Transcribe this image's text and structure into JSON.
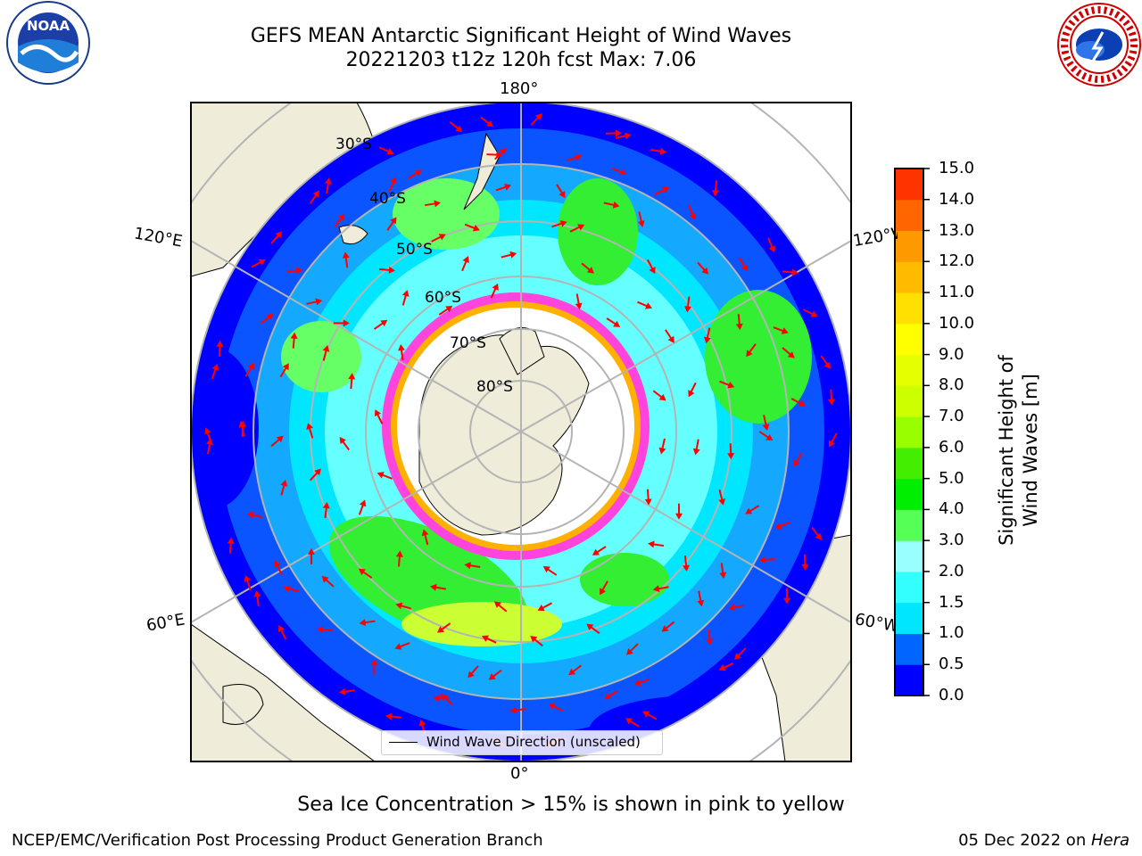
{
  "title": {
    "line1": "GEFS MEAN Antarctic Significant Height of Wind Waves",
    "line2": "20221203 t12z 120h fcst   Max: 7.06"
  },
  "logos": {
    "left": {
      "icon": "noaa-logo-icon",
      "text": "NOAA",
      "ring_text": "NATIONAL OCEANIC AND ATMOSPHERIC ADMINISTRATION · U.S. DEPARTMENT OF COMMERCE"
    },
    "right": {
      "icon": "nws-logo-icon",
      "ring_text": "NATIONAL WEATHER SERVICE"
    }
  },
  "map": {
    "projection": "south-polar-stereographic",
    "longitude_labels": {
      "top": "180°",
      "bottom": "0°",
      "left_upper": "120°E",
      "left_lower": "60°E",
      "right_upper": "120°W",
      "right_lower": "60°W"
    },
    "latitude_labels": [
      "30°S",
      "40°S",
      "50°S",
      "60°S",
      "70°S",
      "80°S"
    ],
    "legend": {
      "label": "Wind Wave Direction (unscaled)"
    },
    "colors": {
      "ocean_land_bg": "#efecda",
      "low_waves": "#0000ff",
      "ice_pink": "#ff33dd",
      "ice_orange": "#ffb400",
      "arrow": "#ff0000",
      "grid": "#b4b4b4"
    }
  },
  "colorbar": {
    "label": "Significant Height of Wind Waves [m]",
    "ticks": [
      "15.0",
      "14.0",
      "13.0",
      "12.0",
      "11.0",
      "10.0",
      "9.0",
      "8.0",
      "7.0",
      "6.0",
      "5.0",
      "4.0",
      "3.0",
      "2.0",
      "1.5",
      "1.0",
      "0.5",
      "0.0"
    ],
    "colors": [
      "#0000ff",
      "#0066ff",
      "#00e6ff",
      "#33ffff",
      "#99ffff",
      "#55ff55",
      "#00ee00",
      "#44ee00",
      "#99ff00",
      "#ccff00",
      "#e6ff00",
      "#ffff00",
      "#ffe000",
      "#ffbb00",
      "#ff9900",
      "#ff6600",
      "#ff3300"
    ]
  },
  "footnote": "Sea Ice Concentration > 15% is shown in pink to yellow",
  "credit": "NCEP/EMC/Verification Post Processing Product Generation Branch",
  "date": {
    "text": "05 Dec 2022 on ",
    "machine": "Hera"
  }
}
